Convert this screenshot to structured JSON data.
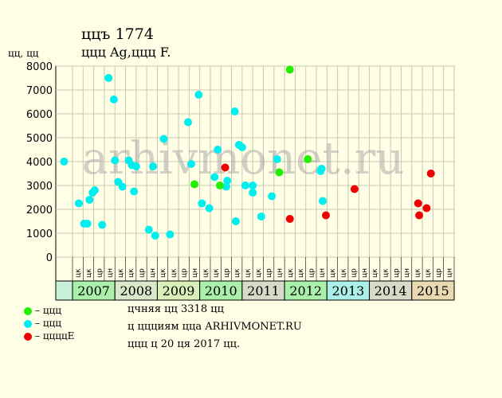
{
  "header": {
    "title_line1": "ццъ 1774",
    "title_line2": "ццц Ag,ццц F.",
    "y_axis_label": "цц, цц"
  },
  "legend": {
    "items": [
      {
        "label": "– ццц",
        "color": "#22ee00"
      },
      {
        "label": "– ццц",
        "color": "#00eeee"
      },
      {
        "label": "– ццццЕ",
        "color": "#ee0000"
      }
    ]
  },
  "notes": {
    "line1": "цчняя цц 3318 цц",
    "line2": "ц ццциям цца ARHIVMONET.RU",
    "line3": "ццц ц 20 ця 2017 цц."
  },
  "watermark": "arhivmonet.ru",
  "chart_data": {
    "type": "scatter",
    "title": "",
    "xlabel": "",
    "ylabel": "цц, цц",
    "ylim": [
      0,
      8000
    ],
    "yticks": [
      0,
      1000,
      2000,
      3000,
      4000,
      5000,
      6000,
      7000,
      8000
    ],
    "grid": true,
    "quarter_labels": [
      "цк",
      "цк",
      "цр",
      "цн",
      "цк",
      "цк",
      "цр",
      "цн",
      "цк",
      "цк",
      "цр",
      "цн",
      "цк",
      "цк",
      "цр",
      "цк",
      "цк",
      "цк",
      "цр",
      "цн",
      "цк",
      "цк",
      "цр",
      "цн",
      "цк",
      "цк",
      "цр",
      "цн",
      "цк",
      "цк",
      "цр",
      "цн",
      "цк",
      "цк",
      "цр",
      "цн"
    ],
    "years": [
      {
        "label": "2007",
        "color": "#aaf0aa"
      },
      {
        "label": "2008",
        "color": "#d9e8c8"
      },
      {
        "label": "2009",
        "color": "#d8f0b8"
      },
      {
        "label": "2010",
        "color": "#aaf0aa"
      },
      {
        "label": "2011",
        "color": "#d9d9c8"
      },
      {
        "label": "2012",
        "color": "#aaf0aa"
      },
      {
        "label": "2013",
        "color": "#aaf0e8"
      },
      {
        "label": "2014",
        "color": "#d9d9c8"
      },
      {
        "label": "2015",
        "color": "#e8d9b0"
      }
    ],
    "first_column_color": "#c8f0d8",
    "series": [
      {
        "color": "#00eeee",
        "points": [
          [
            0.2,
            4000
          ],
          [
            1.6,
            2250
          ],
          [
            2.1,
            1400
          ],
          [
            2.4,
            1400
          ],
          [
            2.6,
            2400
          ],
          [
            2.9,
            2700
          ],
          [
            3.1,
            2800
          ],
          [
            3.8,
            1350
          ],
          [
            4.4,
            7500
          ],
          [
            4.9,
            6600
          ],
          [
            5.0,
            4050
          ],
          [
            5.3,
            3150
          ],
          [
            5.7,
            2950
          ],
          [
            6.3,
            4050
          ],
          [
            6.6,
            3850
          ],
          [
            6.8,
            2750
          ],
          [
            7.0,
            3800
          ],
          [
            8.2,
            1150
          ],
          [
            8.6,
            3800
          ],
          [
            8.8,
            900
          ],
          [
            9.6,
            4950
          ],
          [
            10.2,
            950
          ],
          [
            11.9,
            5650
          ],
          [
            12.2,
            3900
          ],
          [
            12.9,
            6800
          ],
          [
            13.2,
            2250
          ],
          [
            13.9,
            2050
          ],
          [
            14.4,
            3350
          ],
          [
            14.7,
            4500
          ],
          [
            15.5,
            2950
          ],
          [
            15.6,
            3200
          ],
          [
            16.3,
            6100
          ],
          [
            16.4,
            1500
          ],
          [
            16.7,
            4700
          ],
          [
            17.0,
            4600
          ],
          [
            17.3,
            3000
          ],
          [
            18.0,
            3000
          ],
          [
            18.0,
            2700
          ],
          [
            18.8,
            1700
          ],
          [
            19.8,
            2550
          ],
          [
            20.3,
            4100
          ],
          [
            24.4,
            3600
          ],
          [
            24.5,
            3700
          ],
          [
            24.6,
            2350
          ]
        ]
      },
      {
        "color": "#22ee00",
        "points": [
          [
            12.5,
            3050
          ],
          [
            14.9,
            3000
          ],
          [
            20.5,
            3550
          ],
          [
            21.5,
            7850
          ],
          [
            23.2,
            4100
          ]
        ]
      },
      {
        "color": "#ee0000",
        "points": [
          [
            15.4,
            3750
          ],
          [
            21.5,
            1600
          ],
          [
            24.9,
            1750
          ],
          [
            27.6,
            2850
          ],
          [
            33.6,
            2250
          ],
          [
            33.7,
            1750
          ],
          [
            34.4,
            2050
          ],
          [
            34.8,
            3500
          ]
        ]
      }
    ]
  }
}
